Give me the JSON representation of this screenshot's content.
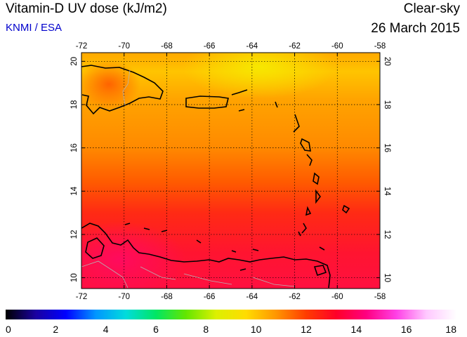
{
  "header": {
    "title": "Vitamin-D UV dose (kJ/m2)",
    "credit": "KNMI / ESA",
    "sky_type": "Clear-sky",
    "date": "26 March 2015"
  },
  "map": {
    "lon_ticks": [
      "-72",
      "-70",
      "-68",
      "-66",
      "-64",
      "-62",
      "-60",
      "-58"
    ],
    "lat_ticks": [
      "10",
      "12",
      "14",
      "16",
      "18",
      "20"
    ],
    "lon_range": [
      -72,
      -58
    ],
    "lat_range": [
      9.5,
      20.4
    ],
    "grid": true
  },
  "colorbar": {
    "labels": [
      "0",
      "2",
      "4",
      "6",
      "8",
      "10",
      "12",
      "14",
      "16",
      "18"
    ],
    "range": [
      0,
      18
    ],
    "colors": [
      "#000000",
      "#1a00a0",
      "#0000ff",
      "#0096ff",
      "#00dcdc",
      "#00e664",
      "#64e600",
      "#dcf000",
      "#ffdc00",
      "#ff9600",
      "#ff3c00",
      "#ff0028",
      "#ff0080",
      "#ff40e6",
      "#ffc8ff",
      "#ffffff"
    ]
  }
}
